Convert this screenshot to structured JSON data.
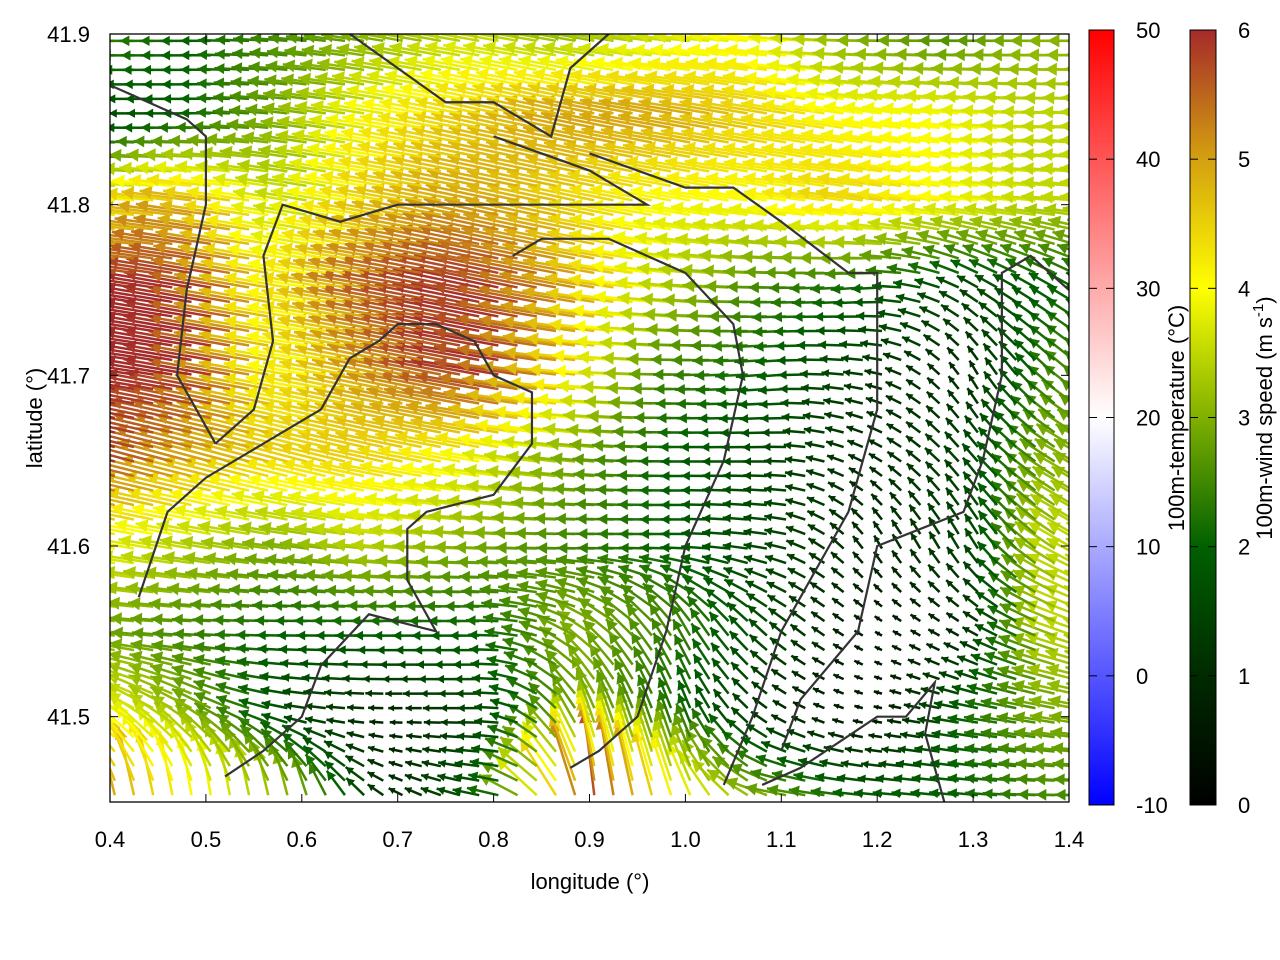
{
  "chart_data": {
    "type": "vector-field",
    "xlabel": "longitude (°)",
    "ylabel": "latitude (°)",
    "xlim": [
      0.4,
      1.4
    ],
    "ylim": [
      41.45,
      41.9
    ],
    "xticks": [
      "0.4",
      "0.5",
      "0.6",
      "0.7",
      "0.8",
      "0.9",
      "1.0",
      "1.1",
      "1.2",
      "1.3",
      "1.4"
    ],
    "yticks": [
      "41.5",
      "41.6",
      "41.7",
      "41.8",
      "41.9"
    ],
    "grid": false,
    "wind_colorbar": {
      "label": "100m-wind speed (m s-1)",
      "label_main": "100m-wind speed (m s",
      "label_sup": "-1",
      "label_end": ")",
      "range": [
        0,
        6
      ],
      "ticks": [
        "0",
        "1",
        "2",
        "3",
        "4",
        "5",
        "6"
      ],
      "palette": [
        "#000000",
        "#002a00",
        "#006000",
        "#80b000",
        "#ffff00",
        "#d4a010",
        "#a52a2a"
      ]
    },
    "temperature_colorbar": {
      "label": "100m-temperature (°C)",
      "range": [
        -10,
        50
      ],
      "ticks": [
        "-10",
        "0",
        "10",
        "20",
        "30",
        "40",
        "50"
      ],
      "palette": [
        "#0000ff",
        "#ffffff",
        "#ff0000"
      ]
    },
    "wind_grid": {
      "lon": [
        0.4,
        0.5,
        0.6,
        0.7,
        0.8,
        0.9,
        1.0,
        1.1,
        1.2,
        1.3,
        1.4
      ],
      "lat": [
        41.9,
        41.85,
        41.8,
        41.75,
        41.7,
        41.65,
        41.6,
        41.55,
        41.5,
        41.45
      ],
      "speed": [
        [
          2.5,
          2,
          2.5,
          3,
          3.5,
          3,
          3.5,
          4,
          3,
          2.5,
          3
        ],
        [
          1.5,
          2,
          3,
          4,
          4.5,
          5,
          5,
          4.5,
          4,
          4,
          3.5
        ],
        [
          4,
          5,
          3.5,
          4.5,
          5,
          4.5,
          4,
          4,
          4.5,
          4,
          3.5
        ],
        [
          6,
          6,
          4,
          5.5,
          6,
          5,
          3.5,
          2.5,
          2,
          1.5,
          2
        ],
        [
          6,
          6,
          4,
          5,
          6,
          4.5,
          2.5,
          2,
          1.2,
          1,
          2.5
        ],
        [
          6,
          5,
          4.5,
          4.5,
          4,
          3,
          2,
          1.5,
          1,
          1.5,
          3
        ],
        [
          4,
          3.5,
          3,
          3.5,
          3,
          2.5,
          2,
          1.5,
          1,
          1.5,
          3.5
        ],
        [
          3,
          2.5,
          2,
          2,
          2,
          3,
          2.5,
          1.5,
          0.5,
          1,
          3.5
        ],
        [
          4,
          3,
          1.5,
          0.8,
          1.5,
          3,
          2,
          1,
          0.5,
          2,
          3
        ],
        [
          5,
          4,
          3,
          1,
          2,
          6,
          4,
          3,
          2,
          2,
          2.5
        ]
      ],
      "direction_deg": [
        [
          180,
          180,
          175,
          170,
          170,
          170,
          175,
          175,
          180,
          180,
          180
        ],
        [
          180,
          180,
          172,
          170,
          168,
          168,
          170,
          170,
          172,
          175,
          178
        ],
        [
          175,
          172,
          170,
          170,
          168,
          168,
          170,
          172,
          172,
          175,
          175
        ],
        [
          172,
          170,
          170,
          170,
          168,
          170,
          175,
          180,
          185,
          150,
          150
        ],
        [
          172,
          170,
          170,
          168,
          170,
          175,
          180,
          185,
          170,
          120,
          140
        ],
        [
          165,
          165,
          165,
          168,
          170,
          175,
          180,
          180,
          150,
          130,
          150
        ],
        [
          170,
          170,
          172,
          175,
          178,
          180,
          180,
          170,
          120,
          120,
          150
        ],
        [
          175,
          178,
          180,
          180,
          180,
          150,
          120,
          140,
          150,
          150,
          160
        ],
        [
          150,
          150,
          170,
          180,
          180,
          110,
          110,
          150,
          170,
          170,
          170
        ],
        [
          100,
          95,
          100,
          150,
          170,
          95,
          110,
          170,
          175,
          175,
          180
        ]
      ]
    },
    "coastlines": [
      [
        [
          0.43,
          41.57
        ],
        [
          0.46,
          41.62
        ],
        [
          0.5,
          41.64
        ],
        [
          0.56,
          41.66
        ],
        [
          0.62,
          41.68
        ],
        [
          0.65,
          41.71
        ],
        [
          0.68,
          41.72
        ],
        [
          0.7,
          41.73
        ],
        [
          0.74,
          41.73
        ],
        [
          0.78,
          41.72
        ],
        [
          0.8,
          41.7
        ],
        [
          0.84,
          41.69
        ],
        [
          0.84,
          41.66
        ],
        [
          0.8,
          41.63
        ],
        [
          0.73,
          41.62
        ],
        [
          0.71,
          41.61
        ],
        [
          0.71,
          41.58
        ],
        [
          0.74,
          41.55
        ],
        [
          0.67,
          41.56
        ],
        [
          0.62,
          41.53
        ],
        [
          0.6,
          41.5
        ],
        [
          0.56,
          41.48
        ],
        [
          0.52,
          41.465
        ]
      ],
      [
        [
          0.51,
          41.66
        ],
        [
          0.55,
          41.68
        ],
        [
          0.57,
          41.72
        ],
        [
          0.56,
          41.77
        ],
        [
          0.58,
          41.8
        ],
        [
          0.64,
          41.79
        ],
        [
          0.7,
          41.8
        ],
        [
          0.76,
          41.8
        ],
        [
          0.9,
          41.8
        ],
        [
          0.96,
          41.8
        ],
        [
          0.9,
          41.82
        ],
        [
          0.85,
          41.83
        ],
        [
          0.8,
          41.84
        ]
      ],
      [
        [
          0.9,
          41.83
        ],
        [
          1.0,
          41.81
        ],
        [
          1.05,
          41.81
        ],
        [
          1.1,
          41.79
        ],
        [
          1.17,
          41.76
        ],
        [
          1.2,
          41.76
        ],
        [
          1.2,
          41.68
        ],
        [
          1.17,
          41.62
        ],
        [
          1.1,
          41.55
        ],
        [
          1.07,
          41.5
        ],
        [
          1.04,
          41.46
        ]
      ],
      [
        [
          0.88,
          41.47
        ],
        [
          0.91,
          41.48
        ],
        [
          0.95,
          41.5
        ],
        [
          0.98,
          41.55
        ],
        [
          1.0,
          41.6
        ],
        [
          1.04,
          41.65
        ],
        [
          1.06,
          41.7
        ],
        [
          1.05,
          41.73
        ],
        [
          1.0,
          41.76
        ],
        [
          0.92,
          41.78
        ],
        [
          0.85,
          41.78
        ],
        [
          0.82,
          41.77
        ]
      ],
      [
        [
          1.27,
          41.45
        ],
        [
          1.25,
          41.49
        ],
        [
          1.26,
          41.52
        ],
        [
          1.23,
          41.5
        ],
        [
          1.2,
          41.5
        ],
        [
          1.12,
          41.47
        ],
        [
          1.08,
          41.46
        ]
      ],
      [
        [
          1.31,
          41.65
        ],
        [
          1.29,
          41.62
        ],
        [
          1.2,
          41.6
        ],
        [
          1.18,
          41.55
        ],
        [
          1.12,
          41.51
        ],
        [
          1.1,
          41.48
        ]
      ],
      [
        [
          1.31,
          41.65
        ],
        [
          1.33,
          41.7
        ],
        [
          1.33,
          41.76
        ],
        [
          1.36,
          41.77
        ],
        [
          1.4,
          41.75
        ]
      ],
      [
        [
          0.4,
          41.87
        ],
        [
          0.44,
          41.86
        ],
        [
          0.48,
          41.85
        ],
        [
          0.5,
          41.84
        ],
        [
          0.5,
          41.8
        ],
        [
          0.48,
          41.75
        ],
        [
          0.47,
          41.7
        ],
        [
          0.51,
          41.66
        ]
      ],
      [
        [
          0.65,
          41.9
        ],
        [
          0.7,
          41.88
        ],
        [
          0.75,
          41.86
        ],
        [
          0.8,
          41.86
        ],
        [
          0.83,
          41.85
        ],
        [
          0.86,
          41.84
        ],
        [
          0.88,
          41.88
        ],
        [
          0.92,
          41.9
        ]
      ]
    ]
  }
}
